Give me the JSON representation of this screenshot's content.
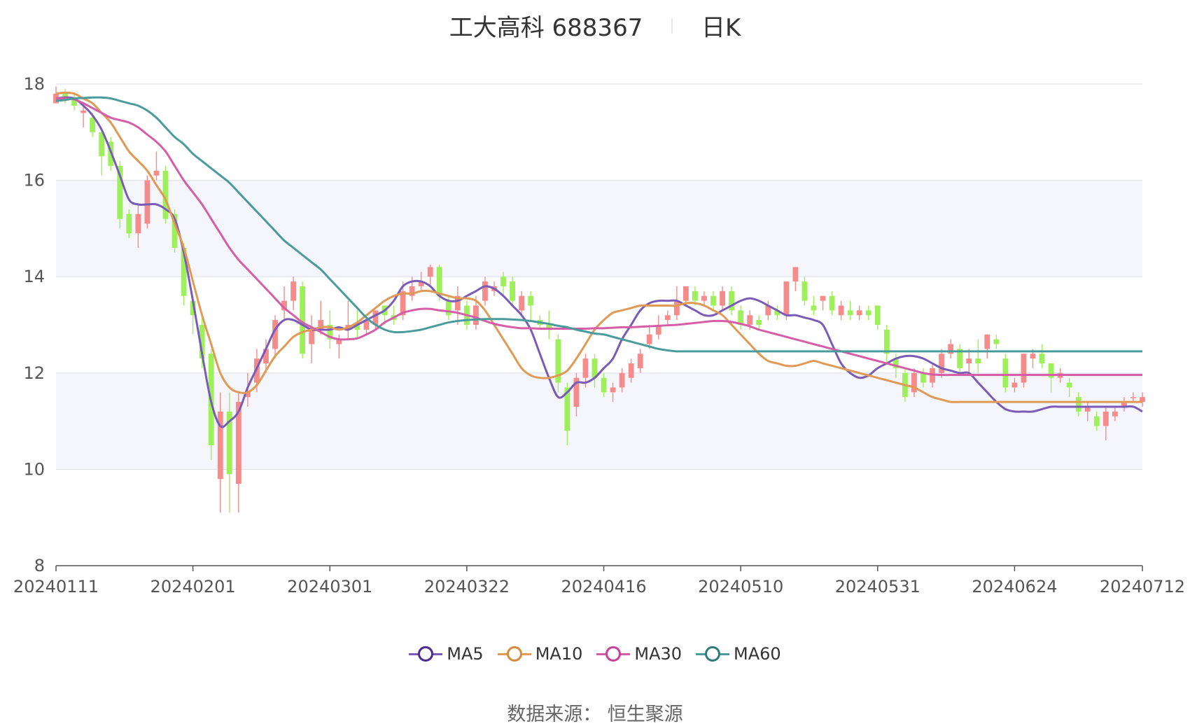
{
  "title": {
    "stock": "工大高科 688367",
    "period": "日K"
  },
  "source": "数据来源： 恒生聚源",
  "colors": {
    "up": "#f58b8b",
    "down": "#9ef05a",
    "MA5": "#7a5cb8",
    "MA10": "#e09a55",
    "MA30": "#d65ea8",
    "MA60": "#4a9c9c",
    "grid": "#dfe3ef",
    "band": "#f5f6fb"
  },
  "chart_data": {
    "type": "candlestick",
    "xlabel": "",
    "ylabel": "",
    "ylim": [
      8,
      18
    ],
    "yticks": [
      8,
      10,
      12,
      14,
      16,
      18
    ],
    "x_tick_labels": [
      "20240111",
      "20240201",
      "20240301",
      "20240322",
      "20240416",
      "20240510",
      "20240531",
      "20240624",
      "20240712"
    ],
    "x_tick_index": [
      0,
      15,
      30,
      45,
      60,
      75,
      90,
      105,
      119
    ],
    "legend": [
      {
        "name": "MA5",
        "color": "#4b2a91"
      },
      {
        "name": "MA10",
        "color": "#d98a3a"
      },
      {
        "name": "MA30",
        "color": "#c9409a"
      },
      {
        "name": "MA60",
        "color": "#2e7b7b"
      }
    ],
    "ohlc": [
      [
        17.6,
        17.8,
        17.95,
        17.6
      ],
      [
        17.8,
        17.7,
        17.9,
        17.6
      ],
      [
        17.7,
        17.55,
        17.8,
        17.45
      ],
      [
        17.4,
        17.45,
        17.6,
        17.1
      ],
      [
        17.3,
        17.0,
        17.4,
        16.9
      ],
      [
        17.0,
        16.5,
        17.1,
        16.1
      ],
      [
        16.8,
        16.3,
        16.9,
        16.2
      ],
      [
        16.3,
        15.2,
        16.4,
        15.0
      ],
      [
        15.3,
        14.9,
        15.4,
        14.8
      ],
      [
        14.9,
        15.3,
        15.5,
        14.6
      ],
      [
        15.1,
        16.0,
        16.1,
        15.0
      ],
      [
        16.1,
        16.2,
        16.6,
        16.0
      ],
      [
        16.2,
        15.2,
        16.3,
        15.1
      ],
      [
        15.3,
        14.6,
        15.4,
        14.5
      ],
      [
        14.6,
        13.6,
        14.7,
        13.4
      ],
      [
        13.5,
        13.2,
        13.6,
        12.8
      ],
      [
        13.0,
        12.3,
        13.2,
        12.1
      ],
      [
        12.4,
        10.5,
        12.5,
        10.2
      ],
      [
        9.8,
        11.2,
        11.6,
        9.1
      ],
      [
        11.2,
        9.9,
        11.6,
        9.1
      ],
      [
        9.7,
        11.4,
        11.6,
        9.1
      ],
      [
        11.5,
        11.6,
        12.0,
        11.3
      ],
      [
        11.8,
        12.3,
        12.5,
        11.6
      ],
      [
        12.2,
        12.5,
        12.7,
        12.0
      ],
      [
        12.5,
        13.1,
        13.2,
        12.3
      ],
      [
        13.3,
        13.5,
        13.8,
        13.1
      ],
      [
        13.5,
        13.9,
        14.0,
        13.3
      ],
      [
        13.8,
        12.4,
        13.9,
        12.3
      ],
      [
        12.6,
        12.9,
        13.2,
        12.2
      ],
      [
        12.9,
        13.1,
        13.5,
        12.8
      ],
      [
        13.0,
        12.7,
        13.3,
        12.5
      ],
      [
        12.6,
        12.7,
        12.8,
        12.3
      ],
      [
        12.9,
        13.0,
        13.5,
        12.7
      ],
      [
        13.0,
        12.9,
        13.3,
        12.7
      ],
      [
        12.9,
        13.1,
        13.2,
        12.8
      ],
      [
        13.0,
        13.3,
        13.3,
        12.9
      ],
      [
        13.4,
        13.2,
        13.4,
        13.0
      ],
      [
        13.2,
        13.1,
        13.4,
        13.0
      ],
      [
        13.2,
        13.7,
        13.9,
        13.1
      ],
      [
        13.6,
        13.8,
        14.0,
        13.5
      ],
      [
        13.8,
        13.9,
        14.1,
        13.7
      ],
      [
        14.0,
        14.2,
        14.25,
        13.8
      ],
      [
        14.2,
        13.6,
        14.25,
        13.5
      ],
      [
        13.5,
        13.2,
        13.6,
        13.1
      ],
      [
        13.3,
        13.6,
        13.8,
        13.0
      ],
      [
        13.4,
        13.0,
        13.5,
        12.9
      ],
      [
        13.0,
        13.4,
        13.6,
        12.9
      ],
      [
        13.5,
        13.9,
        14.0,
        13.4
      ],
      [
        13.7,
        13.8,
        13.9,
        13.6
      ],
      [
        14.0,
        13.8,
        14.1,
        13.6
      ],
      [
        13.9,
        13.5,
        14.0,
        13.4
      ],
      [
        13.3,
        13.6,
        13.7,
        13.2
      ],
      [
        13.6,
        13.4,
        13.7,
        13.1
      ],
      [
        13.1,
        13.0,
        13.2,
        12.9
      ],
      [
        13.0,
        12.9,
        13.3,
        12.7
      ],
      [
        12.7,
        11.8,
        12.8,
        11.6
      ],
      [
        11.7,
        10.8,
        11.8,
        10.5
      ],
      [
        11.3,
        11.9,
        12.0,
        11.1
      ],
      [
        11.9,
        12.3,
        12.4,
        11.7
      ],
      [
        12.3,
        11.9,
        12.4,
        11.7
      ],
      [
        11.9,
        11.6,
        12.0,
        11.5
      ],
      [
        11.6,
        11.7,
        11.8,
        11.4
      ],
      [
        11.7,
        12.0,
        12.1,
        11.6
      ],
      [
        11.9,
        12.2,
        12.3,
        11.8
      ],
      [
        12.1,
        12.4,
        12.5,
        12.0
      ],
      [
        12.6,
        12.8,
        13.0,
        12.5
      ],
      [
        12.8,
        13.0,
        13.2,
        12.7
      ],
      [
        13.1,
        13.2,
        13.3,
        13.0
      ],
      [
        13.2,
        13.5,
        13.8,
        13.1
      ],
      [
        13.5,
        13.8,
        13.8,
        13.4
      ],
      [
        13.7,
        13.5,
        13.8,
        13.4
      ],
      [
        13.5,
        13.6,
        13.7,
        13.4
      ],
      [
        13.6,
        13.4,
        13.7,
        13.3
      ],
      [
        13.4,
        13.7,
        13.8,
        13.3
      ],
      [
        13.7,
        13.3,
        13.8,
        13.2
      ],
      [
        13.3,
        13.0,
        13.4,
        12.9
      ],
      [
        13.0,
        13.2,
        13.3,
        12.9
      ],
      [
        13.1,
        13.0,
        13.2,
        12.9
      ],
      [
        13.2,
        13.4,
        13.5,
        13.1
      ],
      [
        13.3,
        13.2,
        13.4,
        13.1
      ],
      [
        13.2,
        13.9,
        13.9,
        13.1
      ],
      [
        13.9,
        14.2,
        14.2,
        13.7
      ],
      [
        13.9,
        13.5,
        14.0,
        13.4
      ],
      [
        13.4,
        13.3,
        13.6,
        13.2
      ],
      [
        13.5,
        13.6,
        13.6,
        13.3
      ],
      [
        13.6,
        13.3,
        13.7,
        13.2
      ],
      [
        13.2,
        13.4,
        13.5,
        13.1
      ],
      [
        13.3,
        13.2,
        13.5,
        13.1
      ],
      [
        13.2,
        13.3,
        13.4,
        13.1
      ],
      [
        13.3,
        13.2,
        13.4,
        13.1
      ],
      [
        13.4,
        13.0,
        13.4,
        12.9
      ],
      [
        12.9,
        12.4,
        13.0,
        12.2
      ],
      [
        12.3,
        12.1,
        12.4,
        11.9
      ],
      [
        12.0,
        11.5,
        12.1,
        11.4
      ],
      [
        11.6,
        12.0,
        12.1,
        11.5
      ],
      [
        12.0,
        11.8,
        12.1,
        11.7
      ],
      [
        11.8,
        12.1,
        12.2,
        11.7
      ],
      [
        12.0,
        12.4,
        12.5,
        11.9
      ],
      [
        12.4,
        12.6,
        12.7,
        12.3
      ],
      [
        12.5,
        12.1,
        12.6,
        12.0
      ],
      [
        12.2,
        12.3,
        12.5,
        12.0
      ],
      [
        12.3,
        12.2,
        12.7,
        12.0
      ],
      [
        12.5,
        12.8,
        12.8,
        12.3
      ],
      [
        12.7,
        12.6,
        12.8,
        12.5
      ],
      [
        12.3,
        11.7,
        12.4,
        11.6
      ],
      [
        11.7,
        11.8,
        11.9,
        11.6
      ],
      [
        11.8,
        12.4,
        12.4,
        11.7
      ],
      [
        12.3,
        12.4,
        12.5,
        12.1
      ],
      [
        12.4,
        12.2,
        12.6,
        12.1
      ],
      [
        12.2,
        11.9,
        12.2,
        11.6
      ],
      [
        11.9,
        12.0,
        12.1,
        11.8
      ],
      [
        11.8,
        11.7,
        11.9,
        11.5
      ],
      [
        11.5,
        11.2,
        11.6,
        11.1
      ],
      [
        11.2,
        11.3,
        11.4,
        11.0
      ],
      [
        11.1,
        10.9,
        11.2,
        10.8
      ],
      [
        10.9,
        11.2,
        11.3,
        10.6
      ],
      [
        11.1,
        11.2,
        11.3,
        11.0
      ],
      [
        11.3,
        11.4,
        11.5,
        11.2
      ],
      [
        11.5,
        11.5,
        11.6,
        11.4
      ],
      [
        11.4,
        11.5,
        11.6,
        11.3
      ]
    ],
    "series": [
      {
        "name": "MA5",
        "values": [
          17.7,
          17.72,
          17.7,
          17.55,
          17.35,
          17.05,
          16.6,
          16.1,
          15.6,
          15.5,
          15.5,
          15.5,
          15.4,
          15.2,
          14.5,
          13.5,
          12.4,
          11.4,
          10.9,
          11.0,
          11.2,
          11.7,
          12.1,
          12.5,
          12.9,
          13.1,
          13.1,
          13.0,
          12.9,
          12.9,
          12.9,
          12.95,
          12.9,
          13.0,
          13.1,
          13.2,
          13.3,
          13.5,
          13.8,
          13.9,
          13.9,
          13.8,
          13.6,
          13.5,
          13.5,
          13.6,
          13.7,
          13.8,
          13.75,
          13.6,
          13.4,
          13.2,
          12.9,
          12.4,
          11.9,
          11.5,
          11.6,
          11.8,
          11.8,
          11.9,
          12.1,
          12.3,
          12.7,
          13.0,
          13.3,
          13.45,
          13.5,
          13.5,
          13.5,
          13.4,
          13.3,
          13.2,
          13.2,
          13.3,
          13.4,
          13.5,
          13.55,
          13.5,
          13.4,
          13.3,
          13.2,
          13.2,
          13.15,
          13.1,
          13.0,
          12.6,
          12.2,
          12.0,
          11.9,
          11.95,
          12.1,
          12.2,
          12.3,
          12.35,
          12.35,
          12.3,
          12.2,
          12.1,
          12.05,
          12.0,
          12.0,
          11.8,
          11.6,
          11.4,
          11.25,
          11.2,
          11.2,
          11.2,
          11.25,
          11.3,
          11.3,
          11.3,
          11.3,
          11.3,
          11.3,
          11.3,
          11.3,
          11.3,
          11.3,
          11.2
        ]
      },
      {
        "name": "MA10",
        "values": [
          17.8,
          17.82,
          17.8,
          17.7,
          17.6,
          17.4,
          17.2,
          16.9,
          16.6,
          16.4,
          16.2,
          15.9,
          15.6,
          15.1,
          14.6,
          13.9,
          13.2,
          12.6,
          12.0,
          11.7,
          11.6,
          11.6,
          11.75,
          12.05,
          12.35,
          12.55,
          12.75,
          12.85,
          12.9,
          12.95,
          12.95,
          12.9,
          12.95,
          13.05,
          13.2,
          13.35,
          13.5,
          13.6,
          13.65,
          13.65,
          13.7,
          13.7,
          13.65,
          13.6,
          13.55,
          13.55,
          13.5,
          13.3,
          13.0,
          12.7,
          12.4,
          12.1,
          11.95,
          11.9,
          11.9,
          11.95,
          12.05,
          12.3,
          12.6,
          12.9,
          13.1,
          13.25,
          13.3,
          13.35,
          13.4,
          13.4,
          13.4,
          13.4,
          13.4,
          13.45,
          13.45,
          13.4,
          13.3,
          13.2,
          13.0,
          12.8,
          12.6,
          12.4,
          12.25,
          12.2,
          12.15,
          12.15,
          12.2,
          12.25,
          12.2,
          12.15,
          12.1,
          12.05,
          12.0,
          11.95,
          11.9,
          11.85,
          11.8,
          11.75,
          11.7,
          11.6,
          11.5,
          11.45,
          11.4,
          11.4,
          11.4,
          11.4,
          11.4,
          11.4,
          11.4,
          11.4,
          11.4,
          11.4,
          11.4,
          11.4,
          11.4,
          11.4,
          11.4,
          11.4,
          11.4,
          11.4,
          11.4,
          11.4,
          11.4,
          11.4
        ]
      },
      {
        "name": "MA30",
        "values": [
          17.7,
          17.7,
          17.68,
          17.6,
          17.5,
          17.4,
          17.3,
          17.25,
          17.2,
          17.1,
          16.95,
          16.8,
          16.6,
          16.3,
          16.0,
          15.75,
          15.5,
          15.2,
          14.9,
          14.6,
          14.35,
          14.15,
          13.95,
          13.75,
          13.55,
          13.35,
          13.2,
          13.05,
          12.95,
          12.85,
          12.75,
          12.7,
          12.7,
          12.72,
          12.8,
          12.9,
          13.05,
          13.15,
          13.25,
          13.3,
          13.33,
          13.33,
          13.3,
          13.28,
          13.25,
          13.2,
          13.15,
          13.08,
          13.02,
          12.98,
          12.95,
          12.93,
          12.93,
          12.92,
          12.92,
          12.92,
          12.92,
          12.92,
          12.92,
          12.93,
          12.93,
          12.94,
          12.95,
          12.95,
          12.96,
          12.97,
          12.98,
          12.99,
          13.0,
          13.02,
          13.04,
          13.06,
          13.08,
          13.08,
          13.06,
          13.02,
          12.97,
          12.9,
          12.85,
          12.8,
          12.75,
          12.7,
          12.65,
          12.6,
          12.55,
          12.5,
          12.45,
          12.4,
          12.35,
          12.3,
          12.25,
          12.2,
          12.15,
          12.1,
          12.05,
          12.0,
          11.97,
          11.96,
          11.96,
          11.96,
          11.96,
          11.96,
          11.96,
          11.96,
          11.96,
          11.96,
          11.96,
          11.96,
          11.96,
          11.96,
          11.96,
          11.96,
          11.96,
          11.96,
          11.96,
          11.96,
          11.96,
          11.96,
          11.96,
          11.96
        ]
      },
      {
        "name": "MA60",
        "values": [
          17.65,
          17.67,
          17.7,
          17.71,
          17.72,
          17.72,
          17.7,
          17.65,
          17.6,
          17.55,
          17.45,
          17.3,
          17.1,
          16.9,
          16.75,
          16.55,
          16.4,
          16.25,
          16.1,
          15.95,
          15.75,
          15.55,
          15.35,
          15.15,
          14.95,
          14.75,
          14.6,
          14.45,
          14.3,
          14.15,
          13.95,
          13.75,
          13.55,
          13.35,
          13.15,
          13.0,
          12.9,
          12.85,
          12.85,
          12.87,
          12.9,
          12.95,
          13.0,
          13.05,
          13.08,
          13.1,
          13.11,
          13.12,
          13.12,
          13.12,
          13.11,
          13.1,
          13.08,
          13.05,
          13.02,
          12.98,
          12.95,
          12.9,
          12.86,
          12.82,
          12.8,
          12.75,
          12.7,
          12.65,
          12.6,
          12.55,
          12.5,
          12.47,
          12.45,
          12.45,
          12.45,
          12.45,
          12.45,
          12.45,
          12.45,
          12.45,
          12.45,
          12.45,
          12.45,
          12.45,
          12.45,
          12.45,
          12.45,
          12.45,
          12.45,
          12.45,
          12.45,
          12.45,
          12.45,
          12.45,
          12.45,
          12.45,
          12.45,
          12.45,
          12.45,
          12.45,
          12.45,
          12.45,
          12.45,
          12.45,
          12.45,
          12.45,
          12.45,
          12.45,
          12.45,
          12.45,
          12.45,
          12.45,
          12.45,
          12.45,
          12.45,
          12.45,
          12.45,
          12.45,
          12.45,
          12.45,
          12.45,
          12.45,
          12.45,
          12.45
        ]
      }
    ]
  }
}
